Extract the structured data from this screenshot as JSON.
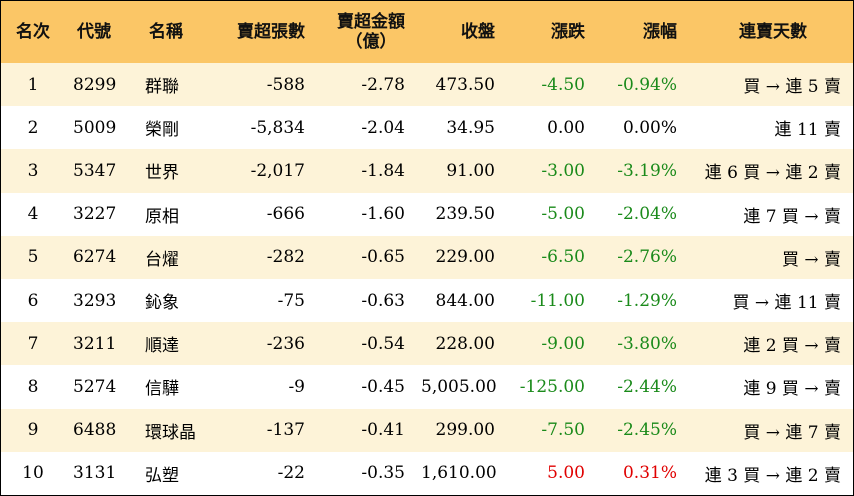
{
  "headers": {
    "rank": "名次",
    "code": "代號",
    "name": "名稱",
    "sell_volume": "賣超張數",
    "sell_amount_line1": "賣超金額",
    "sell_amount_line2": "（億）",
    "close": "收盤",
    "change": "漲跌",
    "change_pct": "漲幅",
    "sell_days": "連賣天數"
  },
  "colors": {
    "header_bg": "#fbc666",
    "row_alt_bg": "#fdf3d8",
    "up": "#e00000",
    "down": "#1a8a1a"
  },
  "rows": [
    {
      "rank": "1",
      "code": "8299",
      "name": "群聯",
      "vol": "-588",
      "amt": "-2.78",
      "close": "473.50",
      "chg": "-4.50",
      "pct": "-0.94%",
      "days": "買 → 連 5 賣",
      "dir": "green"
    },
    {
      "rank": "2",
      "code": "5009",
      "name": "榮剛",
      "vol": "-5,834",
      "amt": "-2.04",
      "close": "34.95",
      "chg": "0.00",
      "pct": "0.00%",
      "days": "連 11 賣",
      "dir": "black"
    },
    {
      "rank": "3",
      "code": "5347",
      "name": "世界",
      "vol": "-2,017",
      "amt": "-1.84",
      "close": "91.00",
      "chg": "-3.00",
      "pct": "-3.19%",
      "days": "連 6 買 → 連 2 賣",
      "dir": "green"
    },
    {
      "rank": "4",
      "code": "3227",
      "name": "原相",
      "vol": "-666",
      "amt": "-1.60",
      "close": "239.50",
      "chg": "-5.00",
      "pct": "-2.04%",
      "days": "連 7 買 → 賣",
      "dir": "green"
    },
    {
      "rank": "5",
      "code": "6274",
      "name": "台燿",
      "vol": "-282",
      "amt": "-0.65",
      "close": "229.00",
      "chg": "-6.50",
      "pct": "-2.76%",
      "days": "買 → 賣",
      "dir": "green"
    },
    {
      "rank": "6",
      "code": "3293",
      "name": "鈊象",
      "vol": "-75",
      "amt": "-0.63",
      "close": "844.00",
      "chg": "-11.00",
      "pct": "-1.29%",
      "days": "買 → 連 11 賣",
      "dir": "green"
    },
    {
      "rank": "7",
      "code": "3211",
      "name": "順達",
      "vol": "-236",
      "amt": "-0.54",
      "close": "228.00",
      "chg": "-9.00",
      "pct": "-3.80%",
      "days": "連 2 買 → 賣",
      "dir": "green"
    },
    {
      "rank": "8",
      "code": "5274",
      "name": "信驊",
      "vol": "-9",
      "amt": "-0.45",
      "close": "5,005.00",
      "chg": "-125.00",
      "pct": "-2.44%",
      "days": "連 9 買 → 賣",
      "dir": "green"
    },
    {
      "rank": "9",
      "code": "6488",
      "name": "環球晶",
      "vol": "-137",
      "amt": "-0.41",
      "close": "299.00",
      "chg": "-7.50",
      "pct": "-2.45%",
      "days": "買 → 連 7 賣",
      "dir": "green"
    },
    {
      "rank": "10",
      "code": "3131",
      "name": "弘塑",
      "vol": "-22",
      "amt": "-0.35",
      "close": "1,610.00",
      "chg": "5.00",
      "pct": "0.31%",
      "days": "連 3 買 → 連 2 賣",
      "dir": "red"
    }
  ]
}
